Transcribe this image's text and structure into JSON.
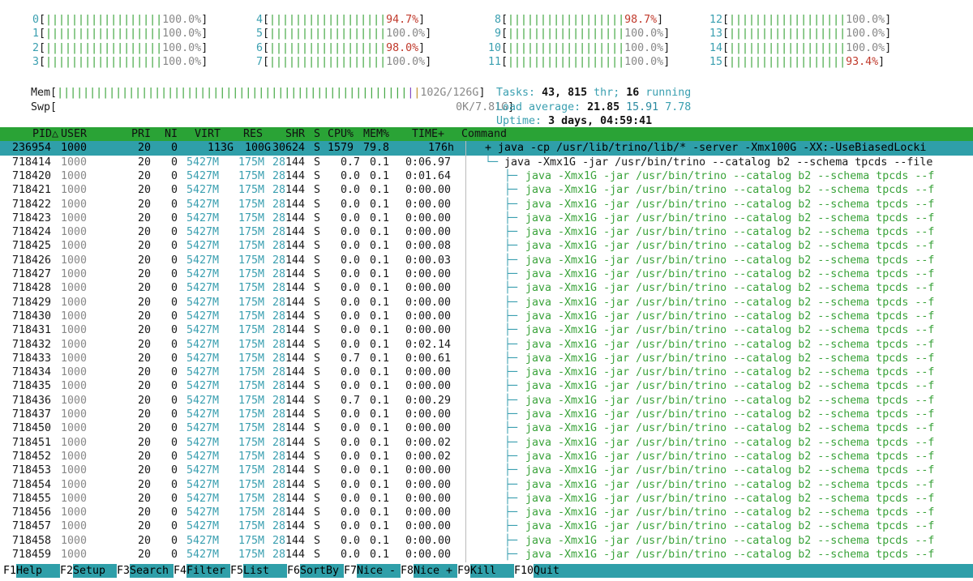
{
  "cpu_meters": [
    {
      "id": "0",
      "bar": "||||||||||||||||||",
      "pct": "100.0%"
    },
    {
      "id": "1",
      "bar": "||||||||||||||||||",
      "pct": "100.0%"
    },
    {
      "id": "2",
      "bar": "||||||||||||||||||",
      "pct": "100.0%"
    },
    {
      "id": "3",
      "bar": "||||||||||||||||||",
      "pct": "100.0%"
    },
    {
      "id": "4",
      "bar": "||||||||||||||||||",
      "pct": "94.7%"
    },
    {
      "id": "5",
      "bar": "||||||||||||||||||",
      "pct": "100.0%"
    },
    {
      "id": "6",
      "bar": "||||||||||||||||||",
      "pct": "98.0%"
    },
    {
      "id": "7",
      "bar": "||||||||||||||||||",
      "pct": "100.0%"
    },
    {
      "id": "8",
      "bar": "||||||||||||||||||",
      "pct": "98.7%"
    },
    {
      "id": "9",
      "bar": "||||||||||||||||||",
      "pct": "100.0%"
    },
    {
      "id": "10",
      "bar": "||||||||||||||||||",
      "pct": "100.0%"
    },
    {
      "id": "11",
      "bar": "||||||||||||||||||",
      "pct": "100.0%"
    },
    {
      "id": "12",
      "bar": "||||||||||||||||||",
      "pct": "100.0%"
    },
    {
      "id": "13",
      "bar": "||||||||||||||||||",
      "pct": "100.0%"
    },
    {
      "id": "14",
      "bar": "||||||||||||||||||",
      "pct": "100.0%"
    },
    {
      "id": "15",
      "bar": "||||||||||||||||||",
      "pct": "93.4%"
    }
  ],
  "mem": {
    "label": "Mem",
    "bar": "||||||||||||||||||||||||||||||||||||||||||||||||||||||",
    "value": "102G/126G"
  },
  "swp": {
    "label": "Swp",
    "value": "0K/7.81G"
  },
  "tasks": {
    "label": "Tasks:",
    "count": "43,",
    "thr": "815",
    "thr_label": "thr;",
    "running": "16",
    "running_label": "running"
  },
  "load": {
    "label": "Load average:",
    "l1": "21.85",
    "l5": "15.91",
    "l15": "7.78"
  },
  "uptime": {
    "label": "Uptime:",
    "value": "3 days, 04:59:41"
  },
  "columns": [
    "PID△",
    "USER",
    "PRI",
    "NI",
    "VIRT",
    "RES",
    "SHR",
    "S",
    "CPU%",
    "MEM%",
    "TIME+",
    "Command"
  ],
  "selected": {
    "pid": "236954",
    "user": "1000",
    "pri": "20",
    "ni": "0",
    "virt": "113G",
    "res": "100G",
    "shr": "30624",
    "s": "S",
    "cpu": "1579",
    "mem": "79.8",
    "time": "176h",
    "cmd": "+ java -cp /usr/lib/trino/lib/* -server -Xmx100G -XX:-UseBiasedLocki"
  },
  "rows": [
    {
      "pid": "718414",
      "cpu": "0.7",
      "time": "0:06.97",
      "cmd": "java -Xmx1G -jar /usr/bin/trino --catalog b2 --schema tpcds --file"
    },
    {
      "pid": "718420",
      "cpu": "0.0",
      "time": "0:01.64"
    },
    {
      "pid": "718421",
      "cpu": "0.0",
      "time": "0:00.00"
    },
    {
      "pid": "718422",
      "cpu": "0.0",
      "time": "0:00.00"
    },
    {
      "pid": "718423",
      "cpu": "0.0",
      "time": "0:00.00"
    },
    {
      "pid": "718424",
      "cpu": "0.0",
      "time": "0:00.00"
    },
    {
      "pid": "718425",
      "cpu": "0.0",
      "time": "0:00.08"
    },
    {
      "pid": "718426",
      "cpu": "0.0",
      "time": "0:00.03"
    },
    {
      "pid": "718427",
      "cpu": "0.0",
      "time": "0:00.00"
    },
    {
      "pid": "718428",
      "cpu": "0.0",
      "time": "0:00.00"
    },
    {
      "pid": "718429",
      "cpu": "0.0",
      "time": "0:00.00"
    },
    {
      "pid": "718430",
      "cpu": "0.0",
      "time": "0:00.00"
    },
    {
      "pid": "718431",
      "cpu": "0.0",
      "time": "0:00.00"
    },
    {
      "pid": "718432",
      "cpu": "0.0",
      "time": "0:02.14"
    },
    {
      "pid": "718433",
      "cpu": "0.7",
      "time": "0:00.61"
    },
    {
      "pid": "718434",
      "cpu": "0.0",
      "time": "0:00.00"
    },
    {
      "pid": "718435",
      "cpu": "0.0",
      "time": "0:00.00"
    },
    {
      "pid": "718436",
      "cpu": "0.7",
      "time": "0:00.29"
    },
    {
      "pid": "718437",
      "cpu": "0.0",
      "time": "0:00.00"
    },
    {
      "pid": "718450",
      "cpu": "0.0",
      "time": "0:00.00"
    },
    {
      "pid": "718451",
      "cpu": "0.0",
      "time": "0:00.02"
    },
    {
      "pid": "718452",
      "cpu": "0.0",
      "time": "0:00.02"
    },
    {
      "pid": "718453",
      "cpu": "0.0",
      "time": "0:00.00"
    },
    {
      "pid": "718454",
      "cpu": "0.0",
      "time": "0:00.00"
    },
    {
      "pid": "718455",
      "cpu": "0.0",
      "time": "0:00.00"
    },
    {
      "pid": "718456",
      "cpu": "0.0",
      "time": "0:00.00"
    },
    {
      "pid": "718457",
      "cpu": "0.0",
      "time": "0:00.00"
    },
    {
      "pid": "718458",
      "cpu": "0.0",
      "time": "0:00.00"
    },
    {
      "pid": "718459",
      "cpu": "0.0",
      "time": "0:00.00"
    }
  ],
  "row_common": {
    "user": "1000",
    "pri": "20",
    "ni": "0",
    "virt": "5427M",
    "res": "175M",
    "shr_a": "28",
    "shr_b": "144",
    "s": "S",
    "mem": "0.1"
  },
  "child_cmd": "java -Xmx1G -jar /usr/bin/trino --catalog b2 --schema tpcds --f",
  "footer": [
    {
      "key": "F1",
      "label": "Help"
    },
    {
      "key": "F2",
      "label": "Setup"
    },
    {
      "key": "F3",
      "label": "Search"
    },
    {
      "key": "F4",
      "label": "Filter"
    },
    {
      "key": "F5",
      "label": "List"
    },
    {
      "key": "F6",
      "label": "SortBy"
    },
    {
      "key": "F7",
      "label": "Nice -"
    },
    {
      "key": "F8",
      "label": "Nice +"
    },
    {
      "key": "F9",
      "label": "Kill"
    },
    {
      "key": "F10",
      "label": "Quit"
    }
  ]
}
